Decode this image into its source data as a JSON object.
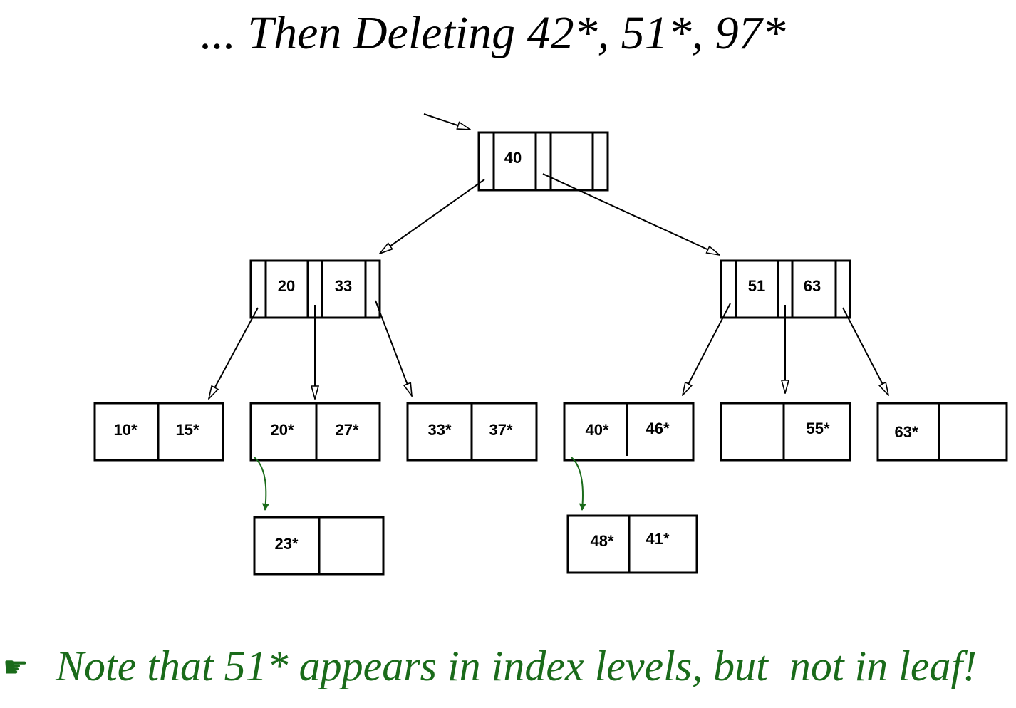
{
  "title": "... Then Deleting 42*, 51*, 97*",
  "root": {
    "keys": [
      "40"
    ]
  },
  "index_nodes": [
    {
      "keys": [
        "20",
        "33"
      ]
    },
    {
      "keys": [
        "51",
        "63"
      ]
    }
  ],
  "leaves": [
    {
      "keys": [
        "10*",
        "15*"
      ]
    },
    {
      "keys": [
        "20*",
        "27*"
      ]
    },
    {
      "keys": [
        "33*",
        "37*"
      ]
    },
    {
      "keys": [
        "40*",
        "46*"
      ]
    },
    {
      "keys": [
        "55*"
      ]
    },
    {
      "keys": [
        "63*"
      ]
    }
  ],
  "overflow_pages": [
    {
      "keys": [
        "23*"
      ]
    },
    {
      "keys": [
        "48*",
        "41*"
      ]
    }
  ],
  "note": {
    "bullet": "☛",
    "text": "Note that 51* appears in index levels, but  not in leaf!"
  }
}
